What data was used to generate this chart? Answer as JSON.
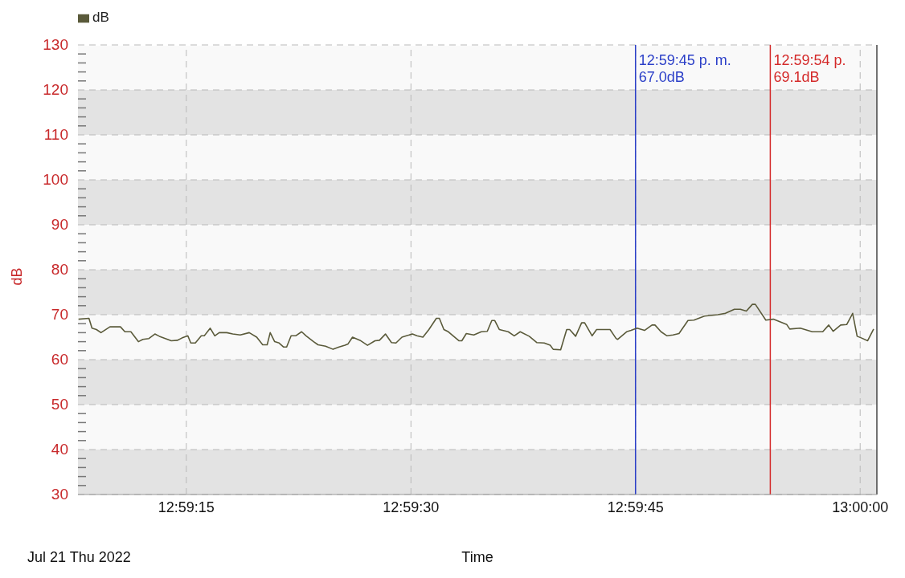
{
  "chart_data": {
    "type": "line",
    "xlabel": "Time",
    "ylabel": "dB",
    "annotations": [
      "12:59:45 p. m.\n67.0dB",
      "12:59:54 p.\n69.1dB",
      "Jul 21 Thu 2022"
    ],
    "legend": "top left",
    "grid": true,
    "line_style": "solid",
    "xlim": [
      12.98549,
      13.00031
    ],
    "xticks": [
      {
        "value": 12.9875,
        "label": "12:59:15"
      },
      {
        "value": 12.991667,
        "label": "12:59:30"
      },
      {
        "value": 12.995833,
        "label": "12:59:45"
      },
      {
        "value": 13.0,
        "label": "13:00:00"
      }
    ],
    "ylim": [
      30,
      130
    ],
    "yticks": [
      30,
      {
        "value": 32,
        "label": null
      },
      {
        "value": 34,
        "label": null
      },
      {
        "value": 36,
        "label": null
      },
      {
        "value": 38,
        "label": null
      },
      40,
      {
        "value": 42,
        "label": null
      },
      {
        "value": 44,
        "label": null
      },
      {
        "value": 46,
        "label": null
      },
      {
        "value": 48,
        "label": null
      },
      50,
      {
        "value": 52,
        "label": null
      },
      {
        "value": 54,
        "label": null
      },
      {
        "value": 56,
        "label": null
      },
      {
        "value": 58,
        "label": null
      },
      60,
      {
        "value": 62,
        "label": null
      },
      {
        "value": 64,
        "label": null
      },
      {
        "value": 66,
        "label": null
      },
      {
        "value": 68,
        "label": null
      },
      70,
      {
        "value": 72,
        "label": null
      },
      {
        "value": 74,
        "label": null
      },
      {
        "value": 76,
        "label": null
      },
      {
        "value": 78,
        "label": null
      },
      80,
      {
        "value": 82,
        "label": null
      },
      {
        "value": 84,
        "label": null
      },
      {
        "value": 86,
        "label": null
      },
      {
        "value": 88,
        "label": null
      },
      90,
      {
        "value": 92,
        "label": null
      },
      {
        "value": 94,
        "label": null
      },
      {
        "value": 96,
        "label": null
      },
      {
        "value": 98,
        "label": null
      },
      100,
      {
        "value": 102,
        "label": null
      },
      {
        "value": 104,
        "label": null
      },
      {
        "value": 106,
        "label": null
      },
      {
        "value": 108,
        "label": null
      },
      110,
      {
        "value": 112,
        "label": null
      },
      {
        "value": 114,
        "label": null
      },
      {
        "value": 116,
        "label": null
      },
      {
        "value": 118,
        "label": null
      },
      120,
      {
        "value": 122,
        "label": null
      },
      {
        "value": 124,
        "label": null
      },
      {
        "value": 126,
        "label": null
      },
      {
        "value": 128,
        "label": null
      },
      130
    ],
    "bands": [
      {
        "axis": "y",
        "from": 30,
        "to": 40,
        "color": "#e3e3e3"
      },
      {
        "axis": "y",
        "from": 50,
        "to": 60,
        "color": "#e3e3e3"
      },
      {
        "axis": "y",
        "from": 70,
        "to": 80,
        "color": "#e3e3e3"
      },
      {
        "axis": "y",
        "from": 90,
        "to": 100,
        "color": "#e3e3e3"
      },
      {
        "axis": "y",
        "from": 110,
        "to": 120,
        "color": "#e3e3e3"
      }
    ],
    "ref_lines": [
      {
        "axis": "x",
        "value": 12.995833,
        "color": "#2b3fc8"
      },
      {
        "axis": "x",
        "value": 12.998333,
        "color": "#d42a2a"
      }
    ],
    "series": [
      {
        "name": "dB",
        "color": "#5a5a3a",
        "x": [
          12.9855,
          12.985694,
          12.98575,
          12.985833,
          12.985917,
          12.986083,
          12.986278,
          12.986361,
          12.986472,
          12.986611,
          12.986694,
          12.986806,
          12.986917,
          12.987,
          12.987111,
          12.987222,
          12.987333,
          12.987417,
          12.987528,
          12.987583,
          12.987667,
          12.987778,
          12.987833,
          12.987944,
          12.988028,
          12.988111,
          12.98825,
          12.988361,
          12.9885,
          12.988667,
          12.988806,
          12.988917,
          12.989,
          12.989056,
          12.989139,
          12.989222,
          12.989306,
          12.989361,
          12.989444,
          12.989528,
          12.989639,
          12.989722,
          12.989861,
          12.989944,
          12.990083,
          12.990222,
          12.990333,
          12.990444,
          12.9905,
          12.990583,
          12.990722,
          12.990861,
          12.991,
          12.991083,
          12.991194,
          12.991306,
          12.991389,
          12.9915,
          12.991583,
          12.991694,
          12.991778,
          12.991889,
          12.992,
          12.992139,
          12.992194,
          12.992278,
          12.992361,
          12.992556,
          12.992611,
          12.992694,
          12.992833,
          12.992972,
          12.993083,
          12.993167,
          12.993222,
          12.993306,
          12.993472,
          12.993583,
          12.993694,
          12.993861,
          12.994,
          12.994139,
          12.99425,
          12.994306,
          12.994444,
          12.994556,
          12.994611,
          12.994722,
          12.994833,
          12.994889,
          12.995028,
          12.995111,
          12.99525,
          12.995361,
          12.995472,
          12.9955,
          12.995667,
          12.99575,
          12.995861,
          12.996,
          12.996139,
          12.996194,
          12.996306,
          12.996417,
          12.996528,
          12.996639,
          12.996806,
          12.996917,
          12.997111,
          12.997361,
          12.9975,
          12.997667,
          12.997778,
          12.997889,
          12.998,
          12.998056,
          12.99825,
          12.998389,
          12.998639,
          12.998694,
          12.998889,
          12.999111,
          12.999306,
          12.999417,
          12.9995,
          12.999639,
          12.99975,
          12.999861,
          12.999944,
          13.000028,
          13.000139,
          13.00025
        ],
        "values": [
          69.0,
          69.2,
          67.0,
          66.7,
          66.0,
          67.3,
          67.3,
          66.2,
          66.2,
          64.0,
          64.5,
          64.7,
          65.7,
          65.2,
          64.7,
          64.2,
          64.3,
          64.8,
          65.3,
          63.7,
          63.7,
          65.3,
          65.3,
          67.0,
          65.3,
          66.0,
          66.0,
          65.7,
          65.5,
          66.0,
          65.0,
          63.3,
          63.3,
          66.0,
          64.0,
          63.7,
          62.8,
          62.8,
          65.3,
          65.3,
          66.2,
          65.3,
          64.0,
          63.3,
          63.0,
          62.3,
          62.8,
          63.2,
          63.5,
          65.0,
          64.3,
          63.2,
          64.2,
          64.3,
          65.7,
          63.8,
          63.7,
          65.0,
          65.3,
          65.7,
          65.3,
          65.0,
          66.7,
          69.2,
          69.2,
          66.7,
          66.2,
          64.2,
          64.2,
          65.8,
          65.5,
          66.2,
          66.3,
          68.7,
          68.7,
          66.7,
          66.2,
          65.3,
          66.2,
          65.2,
          63.8,
          63.7,
          63.2,
          62.3,
          62.2,
          66.7,
          66.7,
          65.2,
          68.2,
          68.2,
          65.3,
          66.7,
          66.7,
          66.7,
          64.7,
          64.5,
          66.2,
          66.5,
          67.0,
          66.5,
          67.7,
          67.7,
          66.2,
          65.3,
          65.5,
          65.8,
          68.7,
          68.8,
          69.7,
          70.0,
          70.3,
          71.2,
          71.2,
          70.8,
          72.3,
          72.3,
          68.8,
          69.0,
          67.8,
          66.8,
          67.0,
          66.2,
          66.2,
          67.7,
          66.3,
          67.7,
          67.8,
          70.3,
          65.2,
          64.8,
          64.2,
          66.8
        ]
      }
    ]
  }
}
